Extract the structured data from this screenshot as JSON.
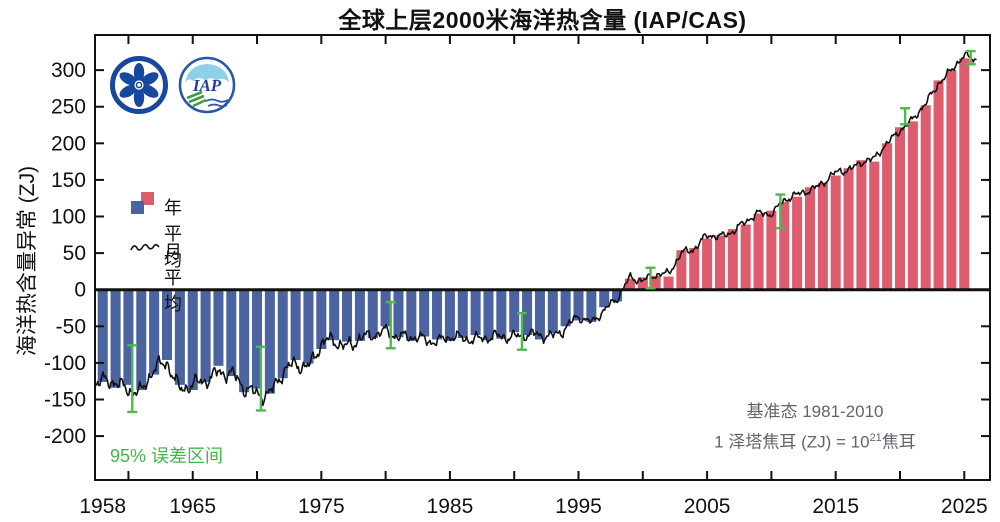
{
  "title": "全球上层2000米海洋热含量 (IAP/CAS)",
  "y_axis": {
    "label": "海洋热含量异常 (ZJ)",
    "tick_values": [
      300,
      250,
      200,
      150,
      100,
      50,
      0,
      -50,
      -100,
      -150,
      -200
    ]
  },
  "x_axis": {
    "labeled_years": [
      1958,
      1965,
      1975,
      1985,
      1995,
      2005,
      2015,
      2025
    ],
    "minor_tick_start": 1960,
    "minor_tick_step": 5,
    "minor_tick_end": 2025
  },
  "legend": {
    "annual": "年平均",
    "monthly": "月平均"
  },
  "annotations": {
    "error_note": "95% 误差区间",
    "baseline_line1": "基准态  1981-2010",
    "baseline_line2_prefix": "1 泽塔焦耳 (ZJ) = 10",
    "baseline_line2_exp": "21",
    "baseline_line2_suffix": "焦耳"
  },
  "logos": {
    "iap_text": "IAP"
  },
  "colors": {
    "bar_positive": "#dd5c6e",
    "bar_negative": "#4b63a1",
    "monthly_line": "#111111",
    "error_bar": "#4cbb4c",
    "error_text": "#43b649",
    "baseline_text": "#63636d",
    "axis": "#111111",
    "logo_blue": "#17479e",
    "logo_sky": "#8fd0e8",
    "logo_green": "#3f9b3c"
  },
  "chart_data": {
    "type": "bar",
    "title": "全球上层2000米海洋热含量 (IAP/CAS)",
    "xlabel": "",
    "ylabel": "海洋热含量异常 (ZJ)",
    "xlim": [
      1957.4,
      2027.0
    ],
    "ylim": [
      -260,
      348
    ],
    "grid": false,
    "baseline_period": "1981-2010",
    "unit_note": "1 ZJ = 10^21 J",
    "years_start": 1958,
    "annual_values": [
      -126,
      -134,
      -130,
      -137,
      -116,
      -96,
      -130,
      -137,
      -126,
      -104,
      -118,
      -140,
      -135,
      -142,
      -121,
      -96,
      -101,
      -81,
      -69,
      -71,
      -70,
      -66,
      -50,
      -65,
      -70,
      -64,
      -68,
      -70,
      -66,
      -62,
      -69,
      -67,
      -58,
      -62,
      -68,
      -59,
      -50,
      -42,
      -44,
      -24,
      -16,
      15,
      17,
      19,
      18,
      54,
      57,
      70,
      74,
      83,
      89,
      104,
      108,
      120,
      127,
      140,
      146,
      156,
      166,
      177,
      175,
      200,
      222,
      230,
      252,
      286,
      300,
      316
    ],
    "error_bars_95pct": [
      {
        "year": 1960.3,
        "lo": -167,
        "hi": -76
      },
      {
        "year": 1970.3,
        "lo": -165,
        "hi": -78
      },
      {
        "year": 1980.4,
        "lo": -80,
        "hi": -17
      },
      {
        "year": 1990.6,
        "lo": -82,
        "hi": -32
      },
      {
        "year": 2000.6,
        "lo": 2,
        "hi": 30
      },
      {
        "year": 2010.7,
        "lo": 84,
        "hi": 130
      },
      {
        "year": 2020.4,
        "lo": 226,
        "hi": 248
      },
      {
        "year": 2025.5,
        "lo": 308,
        "hi": 326
      }
    ],
    "monthly_line": {
      "samples_per_year": 12,
      "start": 1957.45,
      "end": 2025.97,
      "harmonics": [
        {
          "f": 1.9,
          "p": 0.3,
          "w": 0.45
        },
        {
          "f": 4.3,
          "p": 1.7,
          "w": 0.35
        },
        {
          "f": 8.9,
          "p": 0.6,
          "w": 0.3
        },
        {
          "f": 17.3,
          "p": 2.2,
          "w": 0.22
        },
        {
          "f": 33.1,
          "p": 0.9,
          "w": 0.12
        }
      ],
      "amplitude_steps": [
        {
          "until": 1978,
          "a": 15
        },
        {
          "until": 1995,
          "a": 11
        },
        {
          "until": 2027,
          "a": 8
        }
      ]
    }
  }
}
